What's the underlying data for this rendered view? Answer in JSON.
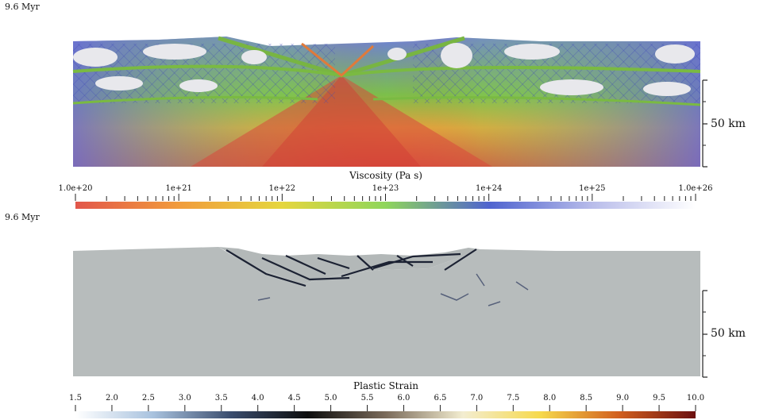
{
  "top_panel": {
    "time_label": "9.6 Myr",
    "scale_label": "50 km",
    "colorbar": {
      "title": "Viscosity (Pa s)",
      "tick_labels": [
        "1.0e+20",
        "1e+21",
        "1e+22",
        "1e+23",
        "1e+24",
        "1e+25",
        "1.0e+26"
      ],
      "range": [
        1e+20,
        1e+26
      ],
      "scale": "log",
      "colors": [
        "#e2564a",
        "#f19c3c",
        "#e5d63e",
        "#8fd65b",
        "#4f63cf",
        "#b8bcea",
        "#ffffff"
      ]
    }
  },
  "bottom_panel": {
    "time_label": "9.6 Myr",
    "scale_label": "50 km",
    "colorbar": {
      "title": "Plastic Strain",
      "tick_labels": [
        "1.5",
        "2.0",
        "2.5",
        "3.0",
        "3.5",
        "4.0",
        "4.5",
        "5.0",
        "5.5",
        "6.0",
        "6.5",
        "7.0",
        "7.5",
        "8.0",
        "8.5",
        "9.0",
        "9.5",
        "10.0"
      ],
      "range": [
        1.5,
        10.0
      ],
      "colors": [
        "#ffffff",
        "#a8c2de",
        "#3b4d6e",
        "#0d0d0d",
        "#7a6a5a",
        "#f3edd0",
        "#f6d94c",
        "#d2601f",
        "#6b0f0f"
      ]
    }
  }
}
